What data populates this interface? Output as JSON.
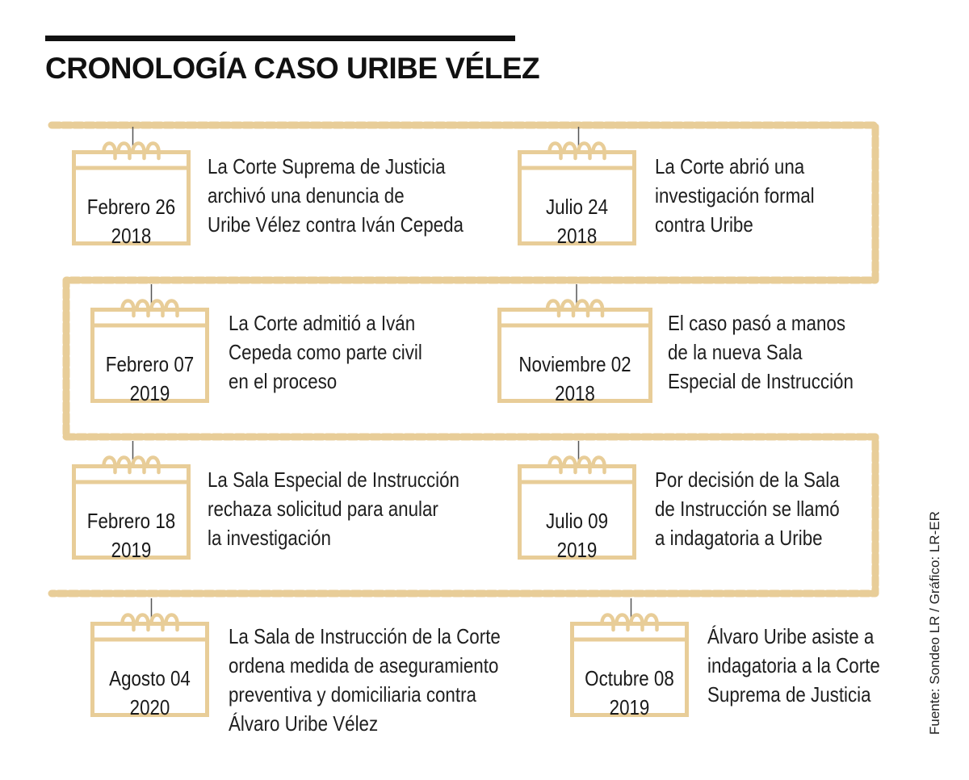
{
  "title": "CRONOLOGÍA CASO URIBE VÉLEZ",
  "source": "Fuente: Sondeo LR / Gráfico: LR-ER",
  "colors": {
    "accent": "#e8cd98",
    "accent_dark": "#e1c389",
    "title": "#111111",
    "text": "#1f1f1f"
  },
  "events": [
    {
      "date": "Febrero 26",
      "year": "2018",
      "lines": [
        "La Corte Suprema de Justicia",
        "archivó una denuncia de",
        "Uribe Vélez contra Iván Cepeda"
      ]
    },
    {
      "date": "Julio 24",
      "year": "2018",
      "lines": [
        "La Corte abrió una",
        "investigación formal",
        "contra Uribe"
      ]
    },
    {
      "date": "Febrero 07",
      "year": "2019",
      "lines": [
        "La Corte admitió a Iván",
        "Cepeda como parte civil",
        "en el proceso"
      ]
    },
    {
      "date": "Noviembre 02",
      "year": "2018",
      "lines": [
        "El caso pasó a manos",
        "de la nueva Sala",
        "Especial de Instrucción"
      ]
    },
    {
      "date": "Febrero 18",
      "year": "2019",
      "lines": [
        "La Sala Especial de Instrucción",
        "rechaza solicitud para anular",
        "la investigación"
      ]
    },
    {
      "date": "Julio 09",
      "year": "2019",
      "lines": [
        "Por decisión de la Sala",
        "de Instrucción se llamó",
        "a indagatoria a Uribe"
      ]
    },
    {
      "date": "Agosto 04",
      "year": "2020",
      "lines": [
        "La Sala de Instrucción de la Corte",
        "ordena medida de aseguramiento",
        "preventiva y domiciliaria contra",
        "Álvaro Uribe Vélez"
      ]
    },
    {
      "date": "Octubre 08",
      "year": "2019",
      "lines": [
        "Álvaro Uribe asiste a",
        "indagatoria a la Corte",
        "Suprema de Justicia"
      ]
    }
  ]
}
